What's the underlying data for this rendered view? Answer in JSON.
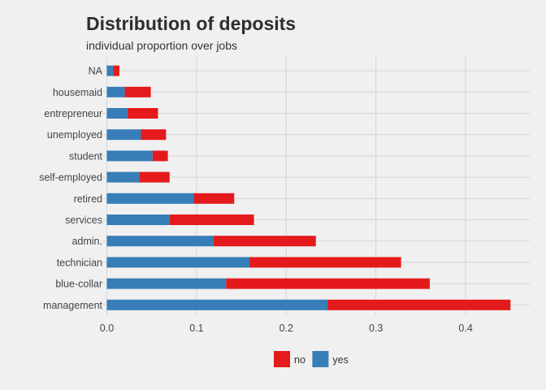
{
  "chart_data": {
    "type": "bar",
    "orientation": "horizontal",
    "stacked": true,
    "title": "Distribution of deposits",
    "subtitle": "individual proportion over jobs",
    "xlabel": "",
    "ylabel": "",
    "xlim": [
      0,
      0.45
    ],
    "xticks": [
      0.0,
      0.1,
      0.2,
      0.3,
      0.4
    ],
    "xtick_labels": [
      "0.0",
      "0.1",
      "0.2",
      "0.3",
      "0.4"
    ],
    "grid": true,
    "legend_position": "bottom",
    "categories": [
      "NA",
      "housemaid",
      "entrepreneur",
      "unemployed",
      "student",
      "self-employed",
      "retired",
      "services",
      "admin.",
      "technician",
      "blue-collar",
      "management"
    ],
    "series": [
      {
        "name": "yes",
        "color": "#377eb8",
        "values": [
          0.007,
          0.02,
          0.023,
          0.038,
          0.051,
          0.036,
          0.097,
          0.07,
          0.119,
          0.159,
          0.133,
          0.246
        ]
      },
      {
        "name": "no",
        "color": "#e41a1c",
        "values": [
          0.007,
          0.029,
          0.034,
          0.028,
          0.017,
          0.034,
          0.045,
          0.094,
          0.114,
          0.169,
          0.227,
          0.204
        ]
      }
    ],
    "legend": [
      {
        "name": "no",
        "color": "#e41a1c"
      },
      {
        "name": "yes",
        "color": "#377eb8"
      }
    ]
  }
}
